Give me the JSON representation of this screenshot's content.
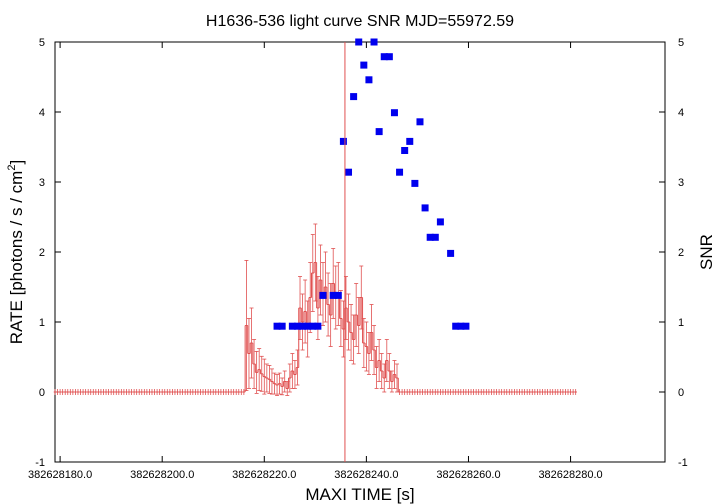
{
  "chart_data": {
    "type": "scatter",
    "title": "H1636-536 light curve  SNR MJD=55972.59",
    "xlabel": "MAXI TIME [s]",
    "ylabel": "RATE [photons / s / cm",
    "ylabel_sup": "2",
    "ylabel_close": "]",
    "y2label": "SNR",
    "xlim": [
      382628179,
      382628298.5
    ],
    "ylim": [
      -1,
      5
    ],
    "y2lim": [
      -1,
      5
    ],
    "x_ticks": [
      {
        "value": 382628180,
        "label": "382628180.0"
      },
      {
        "value": 382628200,
        "label": "382628200.0"
      },
      {
        "value": 382628220,
        "label": "382628220.0"
      },
      {
        "value": 382628240,
        "label": "382628240.0"
      },
      {
        "value": 382628260,
        "label": "382628260.0"
      },
      {
        "value": 382628280,
        "label": "382628280.0"
      }
    ],
    "y_ticks": [
      {
        "value": -1,
        "label": "-1"
      },
      {
        "value": 0,
        "label": "0"
      },
      {
        "value": 1,
        "label": "1"
      },
      {
        "value": 2,
        "label": "2"
      },
      {
        "value": 3,
        "label": "3"
      },
      {
        "value": 4,
        "label": "4"
      },
      {
        "value": 5,
        "label": "5"
      }
    ],
    "y2_ticks": [
      {
        "value": -1,
        "label": "-1"
      },
      {
        "value": 0,
        "label": "0"
      },
      {
        "value": 1,
        "label": "1"
      },
      {
        "value": 2,
        "label": "2"
      },
      {
        "value": 3,
        "label": "3"
      },
      {
        "value": 4,
        "label": "4"
      },
      {
        "value": 5,
        "label": "5"
      }
    ],
    "marker_time": 382628235.8,
    "colors": {
      "rate": "#e05050",
      "snr": "#0000ee",
      "marker": "#e05050",
      "axis": "#000000"
    },
    "grid": false,
    "series": [
      {
        "kind": "rate",
        "marker": "histogram-steps-with-errorbars",
        "x_start": 382628179,
        "x_step": 0.5,
        "values": [
          0,
          0,
          0,
          0,
          0,
          0,
          0,
          0,
          0,
          0,
          0,
          0,
          0,
          0,
          0,
          0,
          0,
          0,
          0,
          0,
          0,
          0,
          0,
          0,
          0,
          0,
          0,
          0,
          0,
          0,
          0,
          0,
          0,
          0,
          0,
          0,
          0,
          0,
          0,
          0,
          0,
          0,
          0,
          0,
          0,
          0,
          0,
          0,
          0,
          0,
          0,
          0,
          0,
          0,
          0,
          0,
          0,
          0,
          0,
          0,
          0,
          0,
          0,
          0,
          0,
          0,
          0,
          0,
          0,
          0,
          0,
          0,
          0,
          0,
          0,
          0.95,
          0.55,
          0.7,
          0.4,
          0.28,
          0.32,
          0.26,
          0.22,
          0.2,
          0.18,
          0.15,
          0.12,
          0.1,
          0.12,
          0.08,
          0.15,
          0.05,
          0.2,
          0.3,
          0.25,
          0.35,
          1.2,
          1.0,
          1.15,
          0.9,
          1.35,
          1.7,
          1.85,
          1.2,
          1.6,
          1.4,
          1.5,
          1.25,
          1.1,
          1.55,
          1.35,
          1.4,
          1.05,
          0.9,
          1.2,
          1.0,
          0.85,
          0.75,
          1.1,
          0.95,
          1.35,
          0.7,
          0.65,
          0.55,
          0.85,
          0.6,
          0.35,
          0.45,
          0.3,
          0.2,
          0.45,
          0.3,
          0.15,
          0.25,
          0.2,
          0,
          0,
          0,
          0,
          0,
          0,
          0,
          0,
          0,
          0,
          0,
          0,
          0,
          0,
          0,
          0,
          0,
          0,
          0,
          0,
          0,
          0,
          0,
          0,
          0,
          0,
          0,
          0,
          0,
          0,
          0,
          0,
          0,
          0,
          0,
          0,
          0,
          0,
          0,
          0,
          0,
          0,
          0,
          0,
          0,
          0,
          0,
          0,
          0,
          0,
          0,
          0,
          0,
          0,
          0,
          0,
          0,
          0,
          0,
          0,
          0,
          0,
          0,
          0,
          0,
          0,
          0,
          0,
          0,
          0
        ],
        "errors": [
          0,
          0,
          0,
          0,
          0,
          0,
          0,
          0,
          0,
          0,
          0,
          0,
          0,
          0,
          0,
          0,
          0,
          0,
          0,
          0,
          0,
          0,
          0,
          0,
          0,
          0,
          0,
          0,
          0,
          0,
          0,
          0,
          0,
          0,
          0,
          0,
          0,
          0,
          0,
          0,
          0,
          0,
          0,
          0,
          0,
          0,
          0,
          0,
          0,
          0,
          0,
          0,
          0,
          0,
          0,
          0,
          0,
          0,
          0,
          0,
          0,
          0,
          0,
          0,
          0,
          0,
          0,
          0,
          0,
          0,
          0,
          0,
          0,
          0,
          0,
          0.93,
          0.5,
          0.5,
          0.35,
          0.3,
          0.3,
          0.25,
          0.25,
          0.2,
          0.2,
          0.18,
          0.15,
          0.15,
          0.15,
          0.12,
          0.15,
          0.1,
          0.2,
          0.25,
          0.2,
          0.25,
          0.45,
          0.4,
          0.45,
          0.4,
          0.5,
          0.55,
          0.55,
          0.45,
          0.5,
          0.45,
          0.5,
          0.45,
          0.45,
          0.5,
          0.45,
          0.45,
          0.4,
          0.4,
          0.45,
          0.4,
          0.4,
          0.35,
          0.45,
          0.4,
          0.45,
          0.35,
          0.35,
          0.3,
          0.4,
          0.35,
          0.3,
          0.3,
          0.25,
          0.2,
          0.3,
          0.25,
          0.15,
          0.2,
          0.2,
          0,
          0,
          0,
          0,
          0,
          0,
          0,
          0,
          0,
          0,
          0,
          0,
          0,
          0,
          0,
          0,
          0,
          0,
          0,
          0,
          0,
          0,
          0,
          0,
          0,
          0,
          0,
          0,
          0,
          0,
          0,
          0,
          0,
          0,
          0,
          0,
          0,
          0,
          0,
          0,
          0,
          0,
          0,
          0,
          0,
          0,
          0,
          0,
          0,
          0,
          0,
          0,
          0,
          0,
          0,
          0,
          0,
          0,
          0,
          0,
          0,
          0,
          0,
          0,
          0,
          0,
          0,
          0,
          0,
          0
        ]
      },
      {
        "kind": "snr",
        "marker": "square",
        "points": [
          [
            382628222.5,
            0.94
          ],
          [
            382628223.5,
            0.94
          ],
          [
            382628225.5,
            0.94
          ],
          [
            382628226.5,
            0.94
          ],
          [
            382628227.5,
            0.94
          ],
          [
            382628228.5,
            0.94
          ],
          [
            382628229.5,
            0.94
          ],
          [
            382628230.5,
            0.94
          ],
          [
            382628231.5,
            1.38
          ],
          [
            382628233.5,
            1.38
          ],
          [
            382628234.5,
            1.38
          ],
          [
            382628235.5,
            3.58
          ],
          [
            382628236.5,
            3.14
          ],
          [
            382628237.5,
            4.22
          ],
          [
            382628238.5,
            5.0
          ],
          [
            382628239.5,
            4.67
          ],
          [
            382628240.5,
            4.46
          ],
          [
            382628241.5,
            5.0
          ],
          [
            382628242.5,
            3.72
          ],
          [
            382628243.5,
            4.79
          ],
          [
            382628244.5,
            4.79
          ],
          [
            382628245.5,
            3.99
          ],
          [
            382628246.5,
            3.14
          ],
          [
            382628247.5,
            3.45
          ],
          [
            382628248.5,
            3.58
          ],
          [
            382628249.5,
            2.98
          ],
          [
            382628250.5,
            3.86
          ],
          [
            382628251.5,
            2.63
          ],
          [
            382628252.5,
            2.21
          ],
          [
            382628253.5,
            2.21
          ],
          [
            382628254.5,
            2.43
          ],
          [
            382628256.5,
            1.98
          ],
          [
            382628257.5,
            0.94
          ],
          [
            382628258.5,
            0.94
          ],
          [
            382628259.5,
            0.94
          ]
        ]
      }
    ]
  }
}
